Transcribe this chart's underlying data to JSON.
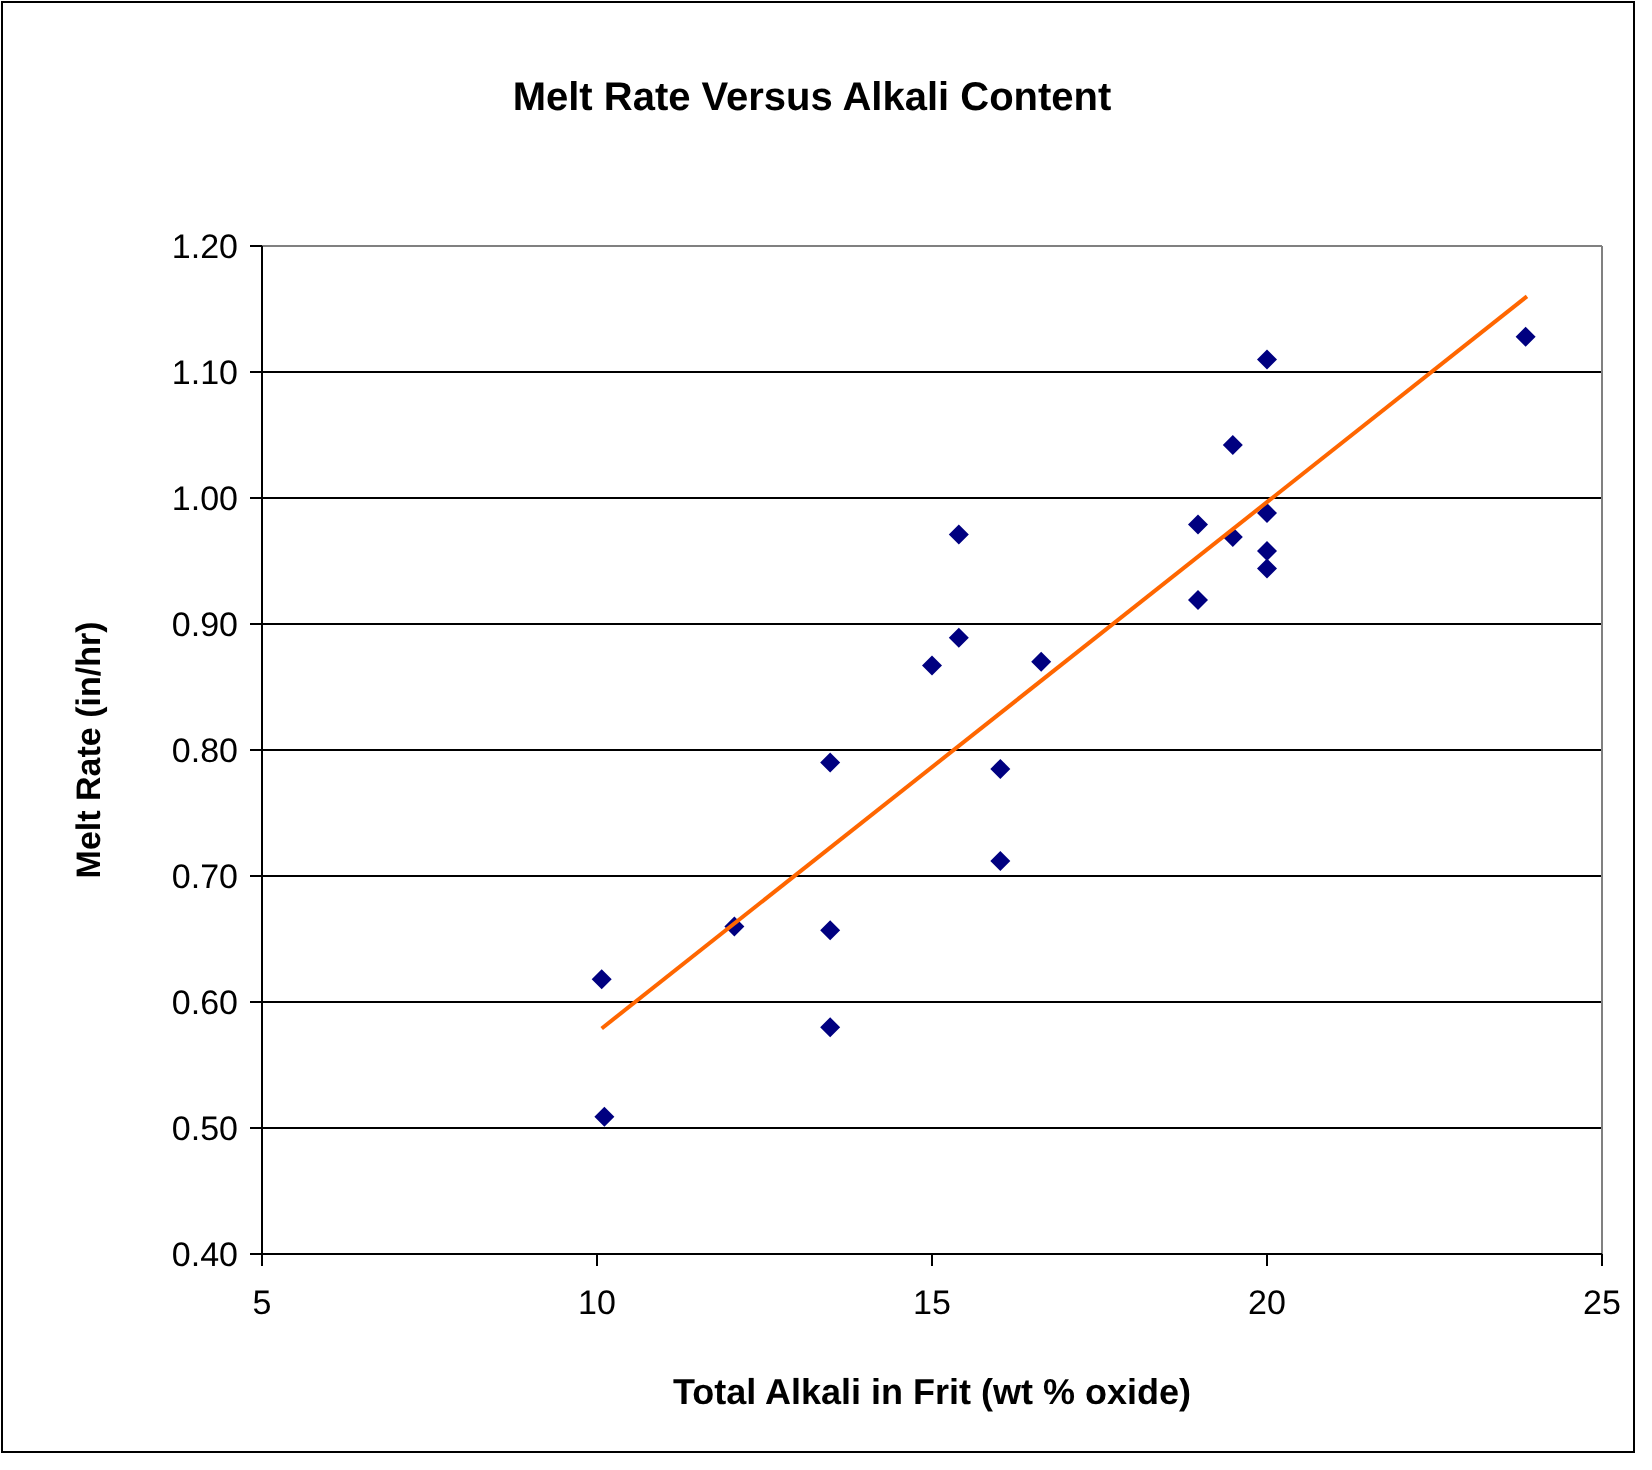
{
  "chart_data": {
    "type": "scatter",
    "title": "Melt Rate Versus Alkali Content",
    "xlabel": "Total Alkali in Frit (wt % oxide)",
    "ylabel": "Melt Rate (in/hr)",
    "xlim": [
      5,
      25
    ],
    "xticks": [
      5,
      10,
      15,
      20,
      25
    ],
    "ylim": [
      0.4,
      1.2
    ],
    "yticks": [
      {
        "value": 0.4,
        "label": "0.40"
      },
      {
        "value": 0.5,
        "label": "0.50"
      },
      {
        "value": 0.6,
        "label": "0.60"
      },
      {
        "value": 0.7,
        "label": "0.70"
      },
      {
        "value": 0.8,
        "label": "0.80"
      },
      {
        "value": 0.9,
        "label": "0.90"
      },
      {
        "value": 1.0,
        "label": "1.00"
      },
      {
        "value": 1.1,
        "label": "1.10"
      },
      {
        "value": 1.2,
        "label": "1.20"
      }
    ],
    "grid": "y",
    "series": [
      {
        "color": "#000080",
        "marker": "diamond",
        "x": [
          10.07,
          10.11,
          12.05,
          13.48,
          13.48,
          13.48,
          15.0,
          15.4,
          15.4,
          16.63,
          16.02,
          16.02,
          18.97,
          18.97,
          19.49,
          19.49,
          20.0,
          20.0,
          20.0,
          20.0,
          23.86
        ],
        "values": [
          0.618,
          0.509,
          0.66,
          0.79,
          0.657,
          0.58,
          0.867,
          0.971,
          0.889,
          0.87,
          0.785,
          0.712,
          0.979,
          0.919,
          1.042,
          0.969,
          1.11,
          0.988,
          0.958,
          0.944,
          1.128
        ]
      },
      {
        "type": "line",
        "color": "#ff6600",
        "marker": "none",
        "x": [
          10.07,
          23.88
        ],
        "values": [
          0.579,
          1.16
        ]
      }
    ]
  }
}
